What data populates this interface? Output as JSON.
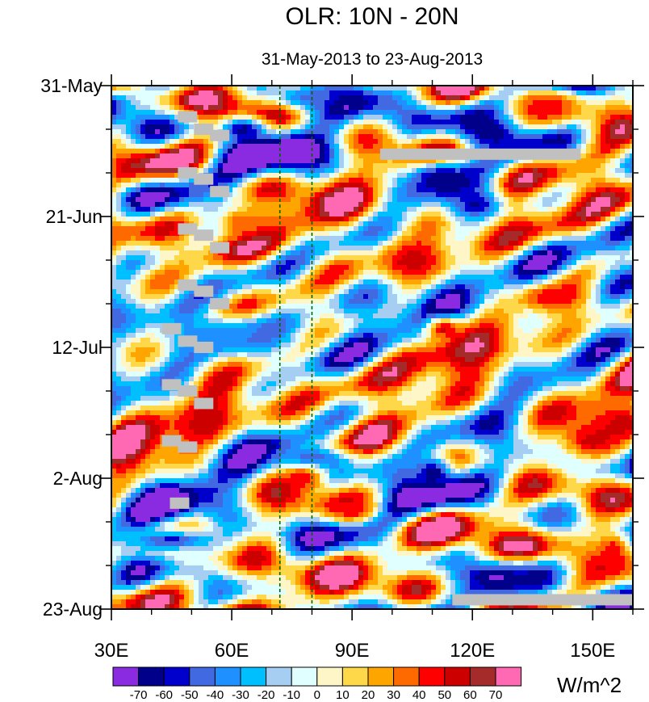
{
  "chart_data": {
    "type": "heatmap",
    "title": "OLR: 10N - 20N",
    "subtitle": "31-May-2013 to 23-Aug-2013",
    "x_axis": {
      "range": [
        30,
        160
      ],
      "ticks": [
        30,
        60,
        90,
        120,
        150
      ],
      "tick_labels": [
        "30E",
        "60E",
        "90E",
        "120E",
        "150E"
      ]
    },
    "y_axis": {
      "range_days": [
        0,
        84
      ],
      "ticks_days": [
        0,
        21,
        42,
        63,
        84
      ],
      "tick_labels": [
        "31-May",
        "21-Jun",
        "12-Jul",
        "2-Aug",
        "23-Aug"
      ],
      "direction": "time increases downward"
    },
    "colorbar": {
      "levels": [
        -70,
        -60,
        -50,
        -40,
        -30,
        -20,
        -10,
        0,
        10,
        20,
        30,
        40,
        50,
        60,
        70
      ],
      "colors": [
        "#8a2be2",
        "#00008b",
        "#0000cd",
        "#4169e1",
        "#1e90ff",
        "#00bfff",
        "#a6cef2",
        "#e0ffff",
        "#fff6c8",
        "#ffd84a",
        "#ffa500",
        "#ff6a00",
        "#ff0000",
        "#cd0000",
        "#a52a2a",
        "#ff69b4"
      ],
      "unit_label": "W/m^2"
    },
    "reference_lines_lon": [
      72,
      80
    ],
    "missing_data_bars": [
      {
        "lon": [
          97,
          147
        ],
        "day": 11
      },
      {
        "lon": [
          115,
          160
        ],
        "day": 82.5
      }
    ],
    "missing_data_blocks": [
      {
        "lon": 49,
        "day": 5
      },
      {
        "lon": 53,
        "day": 7
      },
      {
        "lon": 57,
        "day": 8
      },
      {
        "lon": 49,
        "day": 14
      },
      {
        "lon": 53,
        "day": 15
      },
      {
        "lon": 57,
        "day": 17
      },
      {
        "lon": 49,
        "day": 23
      },
      {
        "lon": 53,
        "day": 24
      },
      {
        "lon": 57,
        "day": 26
      },
      {
        "lon": 49,
        "day": 32
      },
      {
        "lon": 53,
        "day": 33
      },
      {
        "lon": 57,
        "day": 35
      },
      {
        "lon": 45,
        "day": 39
      },
      {
        "lon": 49,
        "day": 41
      },
      {
        "lon": 53,
        "day": 42
      },
      {
        "lon": 45,
        "day": 48
      },
      {
        "lon": 49,
        "day": 49
      },
      {
        "lon": 53,
        "day": 51
      },
      {
        "lon": 45,
        "day": 57
      },
      {
        "lon": 49,
        "day": 58
      },
      {
        "lon": 47,
        "day": 67
      }
    ],
    "anomaly_features": [
      {
        "lon": 124,
        "day": 7,
        "value": -72,
        "rlon": 7,
        "rday": 3
      },
      {
        "lon": 112,
        "day": 15,
        "value": -70,
        "rlon": 8,
        "rday": 3
      },
      {
        "lon": 121,
        "day": 19,
        "value": -62,
        "rlon": 6,
        "rday": 2.5
      },
      {
        "lon": 63,
        "day": 7,
        "value": -65,
        "rlon": 6,
        "rday": 2
      },
      {
        "lon": 110,
        "day": 62,
        "value": -68,
        "rlon": 5,
        "rday": 2.5
      },
      {
        "lon": 126,
        "day": 79,
        "value": -72,
        "rlon": 10,
        "rday": 3
      },
      {
        "lon": 80,
        "day": 2,
        "value": -45,
        "rlon": 10,
        "rday": 2
      },
      {
        "lon": 45,
        "day": 73,
        "value": -55,
        "rlon": 12,
        "rday": 2
      },
      {
        "lon": 80,
        "day": 60,
        "value": -50,
        "rlon": 10,
        "rday": 2
      },
      {
        "lon": 60,
        "day": 40,
        "value": -40,
        "rlon": 15,
        "rday": 3
      },
      {
        "lon": 105,
        "day": 28,
        "value": 55,
        "rlon": 8,
        "rday": 3
      },
      {
        "lon": 113,
        "day": 39,
        "value": 52,
        "rlon": 5,
        "rday": 2
      },
      {
        "lon": 140,
        "day": 34,
        "value": 50,
        "rlon": 8,
        "rday": 2
      },
      {
        "lon": 150,
        "day": 57,
        "value": 55,
        "rlon": 10,
        "rday": 4
      },
      {
        "lon": 138,
        "day": 3,
        "value": 45,
        "rlon": 10,
        "rday": 3
      },
      {
        "lon": 63,
        "day": 22,
        "value": 40,
        "rlon": 8,
        "rday": 3
      },
      {
        "lon": 78,
        "day": 63,
        "value": 50,
        "rlon": 5,
        "rday": 2
      },
      {
        "lon": 90,
        "day": 68,
        "value": 48,
        "rlon": 6,
        "rday": 2
      },
      {
        "lon": 155,
        "day": 75,
        "value": 50,
        "rlon": 5,
        "rday": 4
      }
    ]
  }
}
